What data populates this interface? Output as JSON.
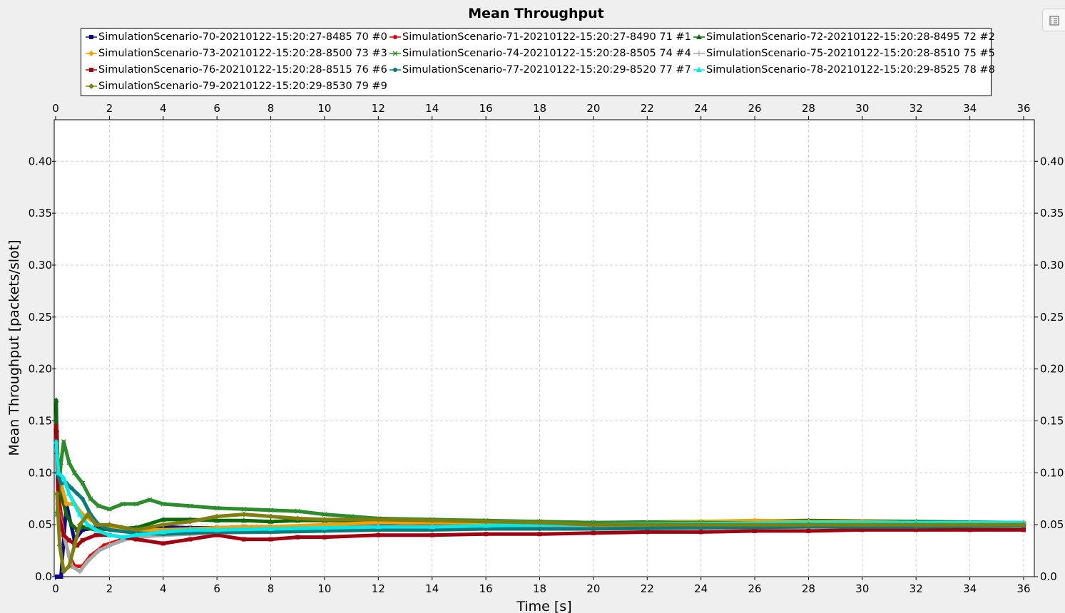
{
  "chart_data": {
    "type": "line",
    "title": "Mean Throughput",
    "xlabel": "Time [s]",
    "ylabel": "Mean Throughput [packets/slot]",
    "xlim": [
      0,
      36
    ],
    "ylim": [
      0.0,
      0.44
    ],
    "x_ticks": [
      "0",
      "2",
      "4",
      "6",
      "8",
      "10",
      "12",
      "14",
      "16",
      "18",
      "20",
      "22",
      "24",
      "26",
      "28",
      "30",
      "32",
      "34",
      "36"
    ],
    "y_ticks": [
      "0.0",
      "0.05",
      "0.10",
      "0.15",
      "0.20",
      "0.25",
      "0.30",
      "0.35",
      "0.40"
    ],
    "grid": true,
    "legend_position": "top",
    "series": [
      {
        "name": "SimulationScenario-70-20210122-15:20:27-8485 70 #0",
        "color": "#0a0a8c",
        "marker": "square",
        "x": [
          0.05,
          0.2,
          0.4,
          0.7,
          1.0,
          1.5,
          2,
          3,
          4,
          5,
          6,
          7,
          8,
          9,
          10,
          12,
          14,
          16,
          18,
          20,
          24,
          28,
          32,
          36
        ],
        "y": [
          0.0,
          0.0,
          0.07,
          0.035,
          0.045,
          0.047,
          0.046,
          0.047,
          0.048,
          0.047,
          0.047,
          0.048,
          0.048,
          0.047,
          0.049,
          0.049,
          0.048,
          0.048,
          0.049,
          0.049,
          0.049,
          0.049,
          0.049,
          0.049
        ]
      },
      {
        "name": "SimulationScenario-71-20210122-15:20:27-8490 71 #1",
        "color": "#e00000",
        "marker": "circle",
        "x": [
          0.05,
          0.1,
          0.3,
          0.5,
          0.7,
          1.0,
          1.3,
          1.8,
          2.5,
          3,
          4,
          5,
          6,
          7,
          8,
          10,
          12,
          14,
          16,
          18,
          20,
          24,
          28,
          32,
          36
        ],
        "y": [
          0.14,
          0.08,
          0.04,
          0.02,
          0.01,
          0.01,
          0.02,
          0.03,
          0.036,
          0.04,
          0.044,
          0.046,
          0.047,
          0.047,
          0.047,
          0.048,
          0.048,
          0.049,
          0.049,
          0.049,
          0.049,
          0.049,
          0.049,
          0.049,
          0.049
        ]
      },
      {
        "name": "SimulationScenario-72-20210122-15:20:28-8495 72 #2",
        "color": "#0a6a0a",
        "marker": "triangle",
        "x": [
          0.02,
          0.05,
          0.2,
          0.4,
          0.6,
          0.8,
          1.0,
          1.5,
          2,
          3,
          4,
          5,
          6,
          7,
          8,
          9,
          10,
          12,
          14,
          16,
          18,
          20,
          24,
          28,
          32,
          36
        ],
        "y": [
          0.17,
          0.12,
          0.08,
          0.06,
          0.05,
          0.045,
          0.048,
          0.045,
          0.046,
          0.047,
          0.055,
          0.055,
          0.054,
          0.054,
          0.053,
          0.054,
          0.054,
          0.054,
          0.054,
          0.053,
          0.053,
          0.052,
          0.053,
          0.054,
          0.053,
          0.052
        ]
      },
      {
        "name": "SimulationScenario-73-20210122-15:20:28-8500 73 #3",
        "color": "#f5a000",
        "marker": "diamond",
        "x": [
          0.05,
          0.2,
          0.4,
          0.7,
          1.0,
          1.3,
          1.6,
          2,
          3,
          4,
          5,
          6,
          7,
          8,
          10,
          12,
          14,
          16,
          18,
          20,
          22,
          24,
          26,
          28,
          30,
          32,
          34,
          36
        ],
        "y": [
          0.08,
          0.09,
          0.07,
          0.07,
          0.06,
          0.055,
          0.05,
          0.048,
          0.045,
          0.045,
          0.046,
          0.047,
          0.048,
          0.048,
          0.05,
          0.052,
          0.052,
          0.052,
          0.051,
          0.051,
          0.052,
          0.053,
          0.054,
          0.053,
          0.053,
          0.052,
          0.052,
          0.052
        ]
      },
      {
        "name": "SimulationScenario-74-20210122-15:20:28-8505 74 #4",
        "color": "#2e8b2e",
        "marker": "x",
        "x": [
          0.05,
          0.2,
          0.3,
          0.5,
          0.7,
          1.0,
          1.3,
          1.6,
          2,
          2.5,
          3,
          3.5,
          4,
          5,
          6,
          7,
          8,
          9,
          10,
          11,
          12,
          14,
          16,
          18,
          20,
          24,
          28,
          32,
          36
        ],
        "y": [
          0.06,
          0.11,
          0.13,
          0.11,
          0.1,
          0.09,
          0.075,
          0.068,
          0.065,
          0.07,
          0.07,
          0.074,
          0.07,
          0.068,
          0.066,
          0.065,
          0.064,
          0.063,
          0.06,
          0.058,
          0.056,
          0.055,
          0.054,
          0.053,
          0.052,
          0.052,
          0.051,
          0.051,
          0.051
        ]
      },
      {
        "name": "SimulationScenario-75-20210122-15:20:28-8510 75 #5",
        "color": "#a8a8a8",
        "marker": "plus",
        "x": [
          0.05,
          0.3,
          0.6,
          0.9,
          1.2,
          1.6,
          2,
          2.5,
          3,
          4,
          5,
          6,
          8,
          10,
          12,
          14,
          16,
          18,
          20,
          24,
          28,
          32,
          36
        ],
        "y": [
          0.07,
          0.04,
          0.01,
          0.005,
          0.015,
          0.025,
          0.03,
          0.035,
          0.038,
          0.04,
          0.041,
          0.042,
          0.043,
          0.044,
          0.045,
          0.046,
          0.047,
          0.047,
          0.048,
          0.048,
          0.048,
          0.048,
          0.048
        ]
      },
      {
        "name": "SimulationScenario-76-20210122-15:20:28-8515 76 #6",
        "color": "#a00010",
        "marker": "square",
        "x": [
          0.02,
          0.1,
          0.3,
          0.5,
          0.8,
          1.0,
          1.5,
          2,
          3,
          4,
          5,
          6,
          7,
          8,
          9,
          10,
          12,
          14,
          16,
          18,
          20,
          22,
          24,
          26,
          28,
          30,
          32,
          34,
          36
        ],
        "y": [
          0.145,
          0.06,
          0.04,
          0.035,
          0.03,
          0.035,
          0.04,
          0.04,
          0.036,
          0.032,
          0.036,
          0.04,
          0.036,
          0.036,
          0.038,
          0.038,
          0.04,
          0.04,
          0.041,
          0.041,
          0.042,
          0.043,
          0.043,
          0.044,
          0.044,
          0.045,
          0.045,
          0.045,
          0.045
        ]
      },
      {
        "name": "SimulationScenario-77-20210122-15:20:29-8520 77 #7",
        "color": "#0a7a7a",
        "marker": "circle",
        "x": [
          0.05,
          0.2,
          0.4,
          0.6,
          0.8,
          1.0,
          1.3,
          1.6,
          2,
          3,
          4,
          5,
          6,
          8,
          10,
          12,
          14,
          16,
          18,
          20,
          24,
          28,
          32,
          36
        ],
        "y": [
          0.1,
          0.09,
          0.09,
          0.085,
          0.08,
          0.075,
          0.06,
          0.05,
          0.045,
          0.042,
          0.041,
          0.042,
          0.043,
          0.043,
          0.044,
          0.045,
          0.045,
          0.046,
          0.046,
          0.046,
          0.047,
          0.048,
          0.048,
          0.049
        ]
      },
      {
        "name": "SimulationScenario-78-20210122-15:20:29-8525 78 #8",
        "color": "#00e8e8",
        "marker": "triangle",
        "x": [
          0.02,
          0.1,
          0.3,
          0.5,
          0.7,
          0.9,
          1.2,
          1.5,
          2,
          2.5,
          3,
          4,
          5,
          6,
          8,
          10,
          12,
          14,
          16,
          18,
          20,
          24,
          28,
          32,
          36
        ],
        "y": [
          0.13,
          0.1,
          0.095,
          0.08,
          0.07,
          0.06,
          0.05,
          0.045,
          0.04,
          0.038,
          0.04,
          0.043,
          0.045,
          0.045,
          0.046,
          0.047,
          0.048,
          0.048,
          0.049,
          0.05,
          0.05,
          0.051,
          0.052,
          0.052,
          0.052
        ]
      },
      {
        "name": "SimulationScenario-79-20210122-15:20:29-8530 79 #9",
        "color": "#7f7f10",
        "marker": "diamond",
        "x": [
          0.05,
          0.15,
          0.3,
          0.5,
          0.7,
          0.9,
          1.2,
          1.5,
          2,
          3,
          4,
          5,
          6,
          7,
          8,
          9,
          10,
          12,
          14,
          16,
          18,
          20,
          24,
          28,
          32,
          36
        ],
        "y": [
          0.08,
          0.03,
          0.005,
          0.01,
          0.03,
          0.05,
          0.06,
          0.05,
          0.05,
          0.045,
          0.05,
          0.053,
          0.058,
          0.06,
          0.058,
          0.056,
          0.055,
          0.055,
          0.054,
          0.053,
          0.052,
          0.05,
          0.05,
          0.05,
          0.05,
          0.05
        ]
      }
    ]
  }
}
